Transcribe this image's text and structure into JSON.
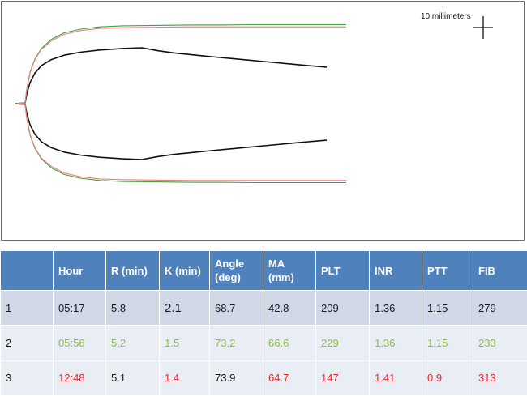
{
  "scale_bar": {
    "label": "10 millimeters",
    "value_mm": 10
  },
  "chart_data": {
    "type": "line",
    "series": [
      {
        "color": "#111111",
        "points": [
          [
            -0.3,
            0.0
          ],
          [
            0.0,
            0.1
          ],
          [
            0.05,
            1.3
          ],
          [
            0.15,
            2.8
          ],
          [
            0.3,
            4.1
          ],
          [
            0.5,
            5.1
          ],
          [
            0.8,
            5.9
          ],
          [
            1.2,
            6.5
          ],
          [
            1.7,
            6.9
          ],
          [
            2.3,
            7.2
          ],
          [
            3.0,
            7.4
          ],
          [
            3.6,
            7.5
          ],
          [
            4.1,
            7.1
          ],
          [
            4.6,
            6.8
          ],
          [
            5.5,
            6.4
          ],
          [
            6.5,
            6.0
          ],
          [
            7.5,
            5.6
          ],
          [
            8.5,
            5.2
          ],
          [
            9.3,
            4.9
          ]
        ]
      },
      {
        "color": "#3fa23f",
        "points": [
          [
            -0.3,
            0.0
          ],
          [
            0.0,
            0.1
          ],
          [
            0.05,
            2.0
          ],
          [
            0.15,
            4.2
          ],
          [
            0.3,
            6.0
          ],
          [
            0.5,
            7.4
          ],
          [
            0.8,
            8.6
          ],
          [
            1.2,
            9.5
          ],
          [
            1.7,
            10.0
          ],
          [
            2.3,
            10.3
          ],
          [
            3.0,
            10.45
          ],
          [
            4.0,
            10.5
          ],
          [
            5.0,
            10.55
          ],
          [
            6.0,
            10.55
          ],
          [
            7.0,
            10.6
          ],
          [
            8.0,
            10.6
          ],
          [
            9.9,
            10.6
          ]
        ]
      },
      {
        "color": "#ef7c82",
        "points": [
          [
            -0.3,
            0.0
          ],
          [
            0.0,
            0.1
          ],
          [
            0.05,
            1.9
          ],
          [
            0.15,
            4.1
          ],
          [
            0.3,
            5.9
          ],
          [
            0.5,
            7.3
          ],
          [
            0.8,
            8.4
          ],
          [
            1.2,
            9.3
          ],
          [
            1.7,
            9.8
          ],
          [
            2.3,
            10.1
          ],
          [
            3.0,
            10.2
          ],
          [
            4.0,
            10.25
          ],
          [
            5.0,
            10.3
          ],
          [
            6.0,
            10.3
          ],
          [
            7.0,
            10.3
          ],
          [
            8.0,
            10.3
          ],
          [
            9.9,
            10.3
          ]
        ]
      }
    ]
  },
  "table": {
    "headers": [
      [
        "",
        ""
      ],
      [
        "Hour",
        ""
      ],
      [
        "R (min)",
        ""
      ],
      [
        "K (min)",
        ""
      ],
      [
        "Angle",
        "(deg)"
      ],
      [
        "MA",
        "(mm)"
      ],
      [
        "PLT",
        ""
      ],
      [
        "INR",
        ""
      ],
      [
        "PTT",
        ""
      ],
      [
        "FIB",
        ""
      ]
    ],
    "rows": [
      {
        "cells": [
          "1",
          "05:17",
          "5.8",
          "2.1",
          "68.7",
          "42.8",
          "209",
          "1.36",
          "1.15",
          "279"
        ],
        "colors": [
          "black",
          "black",
          "black",
          "black",
          "black",
          "black",
          "black",
          "black",
          "black",
          "black"
        ]
      },
      {
        "cells": [
          "2",
          "05:56",
          "5.2",
          "1.5",
          "73.2",
          "66.6",
          "229",
          "1.36",
          "1.15",
          "233"
        ],
        "colors": [
          "black",
          "green",
          "green",
          "green",
          "green",
          "green",
          "green",
          "green",
          "green",
          "green"
        ]
      },
      {
        "cells": [
          "3",
          "12:48",
          "5.1",
          "1.4",
          "73.9",
          "64.7",
          "147",
          "1.41",
          "0.9",
          "313"
        ],
        "colors": [
          "black",
          "red",
          "black",
          "red",
          "black",
          "red",
          "red",
          "red",
          "red",
          "red"
        ]
      }
    ]
  }
}
